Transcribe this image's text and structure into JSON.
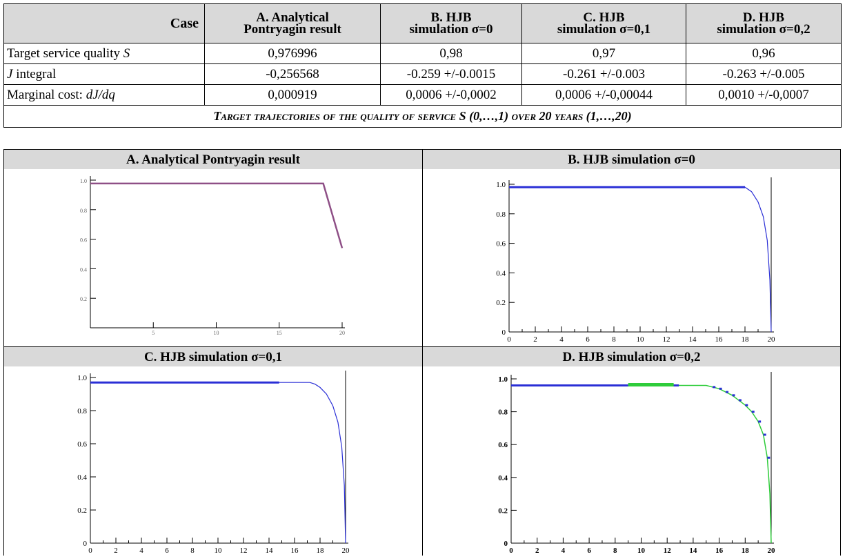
{
  "table": {
    "headers": {
      "case": "Case",
      "a": [
        "A. Analytical",
        "Pontryagin result"
      ],
      "b": [
        "B. HJB",
        "simulation σ=0"
      ],
      "c": [
        "C. HJB",
        "simulation σ=0,1"
      ],
      "d": [
        "D. HJB",
        "simulation σ=0,2"
      ]
    },
    "rows": [
      {
        "label_main": "Target service quality ",
        "label_italic": "S",
        "label_prefix": "",
        "values": [
          "0,976996",
          "0,98",
          "0,97",
          "0,96"
        ]
      },
      {
        "label_main": " integral",
        "label_italic": "J",
        "label_prefix": "",
        "values": [
          "-0,256568",
          "-0.259 +/-0.0015",
          "-0.261 +/-0.003",
          "-0.263 +/-0.005"
        ]
      },
      {
        "label_main": "Marginal cost: ",
        "label_italic": "dJ/dq",
        "label_prefix": "",
        "values": [
          "0,000919",
          "0,0006 +/-0,0002",
          "0,0006 +/-0,00044",
          "0,0010 +/-0,0007"
        ]
      }
    ],
    "section_title": "Target trajectories of the quality of service S (0,…,1) over 20 years (1,…,20)"
  },
  "panels": {
    "a": {
      "title": "A. Analytical Pontryagin result"
    },
    "b": {
      "title": "B. HJB simulation σ=0"
    },
    "c": {
      "title": "C. HJB simulation σ=0,1"
    },
    "d": {
      "title": "D. HJB simulation σ=0,2"
    }
  },
  "colors": {
    "header_bg": "#d9d9d9",
    "pontryagin_line": "#8e4f86",
    "hjb_line": "#2a2fd6",
    "noise_line": "#2ecc3a"
  },
  "chart_data": [
    {
      "type": "line",
      "title": "A. Analytical Pontryagin result",
      "xlim": [
        0,
        20
      ],
      "ylim": [
        0,
        1
      ],
      "x_ticks": [
        5,
        10,
        15,
        20
      ],
      "y_ticks": [
        0.2,
        0.4,
        0.6,
        0.8,
        1.0
      ],
      "x_tick_labels": [
        "5",
        "10",
        "15",
        "20"
      ],
      "y_tick_labels": [
        "0.2",
        "0.4",
        "0.6",
        "0.8",
        "1.0"
      ],
      "series": [
        {
          "x": [
            0,
            18.5,
            20
          ],
          "y": [
            0.977,
            0.977,
            0.54
          ]
        }
      ]
    },
    {
      "type": "line",
      "title": "B. HJB simulation σ=0",
      "xlim": [
        0,
        20
      ],
      "ylim": [
        0,
        1
      ],
      "x_ticks": [
        0,
        2,
        4,
        6,
        8,
        10,
        12,
        14,
        16,
        18,
        20
      ],
      "y_ticks": [
        0,
        0.2,
        0.4,
        0.6,
        0.8,
        1.0
      ],
      "x_tick_labels": [
        "0",
        "2",
        "4",
        "6",
        "8",
        "10",
        "12",
        "14",
        "16",
        "18",
        "20"
      ],
      "y_tick_labels": [
        "0",
        "0.2",
        "0.4",
        "0.6",
        "0.8",
        "1.0"
      ],
      "series": [
        {
          "x": [
            0,
            18,
            18.5,
            19,
            19.4,
            19.7,
            19.9,
            20
          ],
          "y": [
            0.98,
            0.98,
            0.95,
            0.88,
            0.78,
            0.62,
            0.35,
            0.0
          ]
        }
      ]
    },
    {
      "type": "line",
      "title": "C. HJB simulation σ=0,1",
      "xlim": [
        0,
        20
      ],
      "ylim": [
        0,
        1
      ],
      "x_ticks": [
        0,
        2,
        4,
        6,
        8,
        10,
        12,
        14,
        16,
        18,
        20
      ],
      "y_ticks": [
        0,
        0.2,
        0.4,
        0.6,
        0.8,
        1.0
      ],
      "x_tick_labels": [
        "0",
        "2",
        "4",
        "6",
        "8",
        "10",
        "12",
        "14",
        "16",
        "18",
        "20"
      ],
      "y_tick_labels": [
        "0",
        "0.2",
        "0.4",
        "0.6",
        "0.8",
        "1.0"
      ],
      "series": [
        {
          "x": [
            0,
            17.2,
            17.6,
            18,
            18.5,
            19,
            19.4,
            19.7,
            19.9,
            20
          ],
          "y": [
            0.97,
            0.97,
            0.96,
            0.94,
            0.9,
            0.83,
            0.73,
            0.58,
            0.35,
            0.0
          ]
        }
      ]
    },
    {
      "type": "line",
      "title": "D. HJB simulation σ=0,2",
      "xlim": [
        0,
        20
      ],
      "ylim": [
        0,
        1
      ],
      "x_ticks": [
        0,
        2,
        4,
        6,
        8,
        10,
        12,
        14,
        16,
        18,
        20
      ],
      "y_ticks": [
        0,
        0.2,
        0.4,
        0.6,
        0.8,
        1.0
      ],
      "x_tick_labels": [
        "0",
        "2",
        "4",
        "6",
        "8",
        "10",
        "12",
        "14",
        "16",
        "18",
        "20"
      ],
      "y_tick_labels": [
        "0",
        "0.2",
        "0.4",
        "0.6",
        "0.8",
        "1.0"
      ],
      "series": [
        {
          "x": [
            0,
            15,
            15.5,
            16,
            16.5,
            17,
            17.5,
            18,
            18.5,
            19,
            19.4,
            19.7,
            19.9,
            20
          ],
          "y": [
            0.96,
            0.96,
            0.95,
            0.94,
            0.92,
            0.9,
            0.87,
            0.84,
            0.8,
            0.74,
            0.66,
            0.52,
            0.3,
            0.0
          ]
        }
      ]
    }
  ]
}
